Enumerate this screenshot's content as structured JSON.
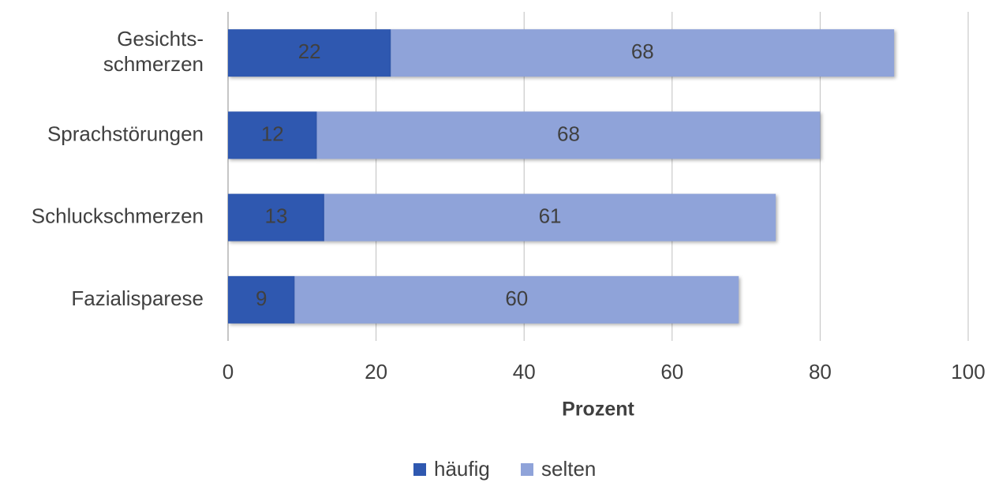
{
  "chart_data": {
    "type": "stacked-barh",
    "categories": [
      "Gesichts-\nschmerzen",
      "Sprachstörungen",
      "Schluckschmerzen",
      "Fazialisparese"
    ],
    "series": [
      {
        "name": "häufig",
        "color": "#2f58b0",
        "values": [
          22,
          12,
          13,
          9
        ]
      },
      {
        "name": "selten",
        "color": "#8fa3d9",
        "values": [
          68,
          68,
          61,
          60
        ]
      }
    ],
    "xlabel": "Prozent",
    "xlim": [
      0,
      100
    ],
    "xticks": [
      0,
      20,
      40,
      60,
      80,
      100
    ],
    "grid": true,
    "legend": "bottom"
  }
}
